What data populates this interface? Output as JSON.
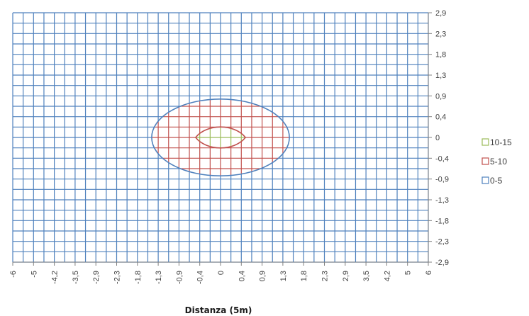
{
  "chart_data": {
    "type": "contour",
    "xlabel": "Distanza (5m)",
    "ylabel": "",
    "title": "",
    "x_ticks": [
      "-6",
      "-5",
      "-4,2",
      "-3,5",
      "-2,9",
      "-2,3",
      "-1,8",
      "-1,3",
      "-0,9",
      "-0,4",
      "0",
      "0,4",
      "0,9",
      "1,3",
      "1,8",
      "2,3",
      "2,9",
      "3,5",
      "4,2",
      "5",
      "6"
    ],
    "y_ticks": [
      "2,9",
      "2,3",
      "1,8",
      "1,3",
      "0,9",
      "0,4",
      "0",
      "-0,4",
      "-0,9",
      "-1,3",
      "-1,8",
      "-2,3",
      "-2,9"
    ],
    "grid": true,
    "legend_position": "right",
    "legend": [
      {
        "label": "10-15",
        "color": "#9bbb59"
      },
      {
        "label": "5-10",
        "color": "#c0504d"
      },
      {
        "label": "0-5",
        "color": "#4f81bd"
      }
    ],
    "bands": [
      {
        "name": "0-5",
        "range": [
          0,
          5
        ],
        "region": "entire grid"
      },
      {
        "name": "5-10",
        "range": [
          5,
          10
        ],
        "x_extent": [
          -1.4,
          1.4
        ],
        "y_extent": [
          -0.85,
          0.85
        ]
      },
      {
        "name": "10-15",
        "range": [
          10,
          15
        ],
        "x_extent": [
          -0.45,
          0.45
        ],
        "y_extent": [
          -0.2,
          0.2
        ]
      }
    ]
  }
}
